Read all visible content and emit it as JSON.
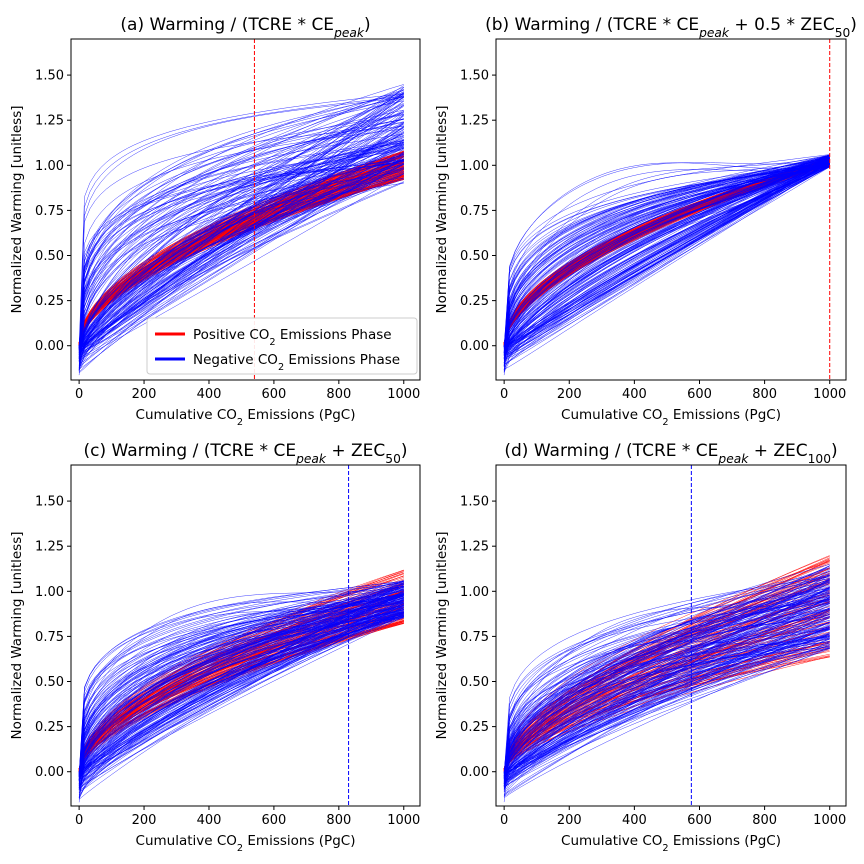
{
  "chart_data": [
    {
      "type": "line",
      "panel": "a",
      "title": "(a) Warming / (TCRE * CE",
      "title_sub": "peak",
      "title_end": ")",
      "xlabel_pre": "Cumulative CO",
      "xlabel_sub": "2",
      "xlabel_post": " Emissions (PgC)",
      "ylabel": "Normalized Warming [unitless]",
      "xlim": [
        -25,
        1050
      ],
      "ylim": [
        -0.19,
        1.7
      ],
      "xticks": [
        "0",
        "200",
        "400",
        "600",
        "800",
        "1000"
      ],
      "yticks": [
        "0.00",
        "0.25",
        "0.50",
        "0.75",
        "1.00",
        "1.25",
        "1.50"
      ],
      "vline": {
        "x": 540,
        "color": "#ff0000"
      },
      "series": [
        {
          "name_pre": "Positive CO",
          "name_sub": "2",
          "name_post": " Emissions Phase",
          "color": "#ff0000",
          "curve_count": 150,
          "final_range": [
            0.92,
            1.08
          ],
          "exponent_range": [
            0.52,
            0.6
          ]
        },
        {
          "name_pre": "Negative CO",
          "name_sub": "2",
          "name_post": " Emissions Phase",
          "color": "#0000ff",
          "curve_count": 180,
          "final_range": [
            0.9,
            1.45
          ],
          "exponent_range": [
            0.12,
            1.15
          ],
          "min_start": -0.18
        }
      ],
      "legend": "lower-right"
    },
    {
      "type": "line",
      "panel": "b",
      "title": "(b) Warming / (TCRE * CE",
      "title_sub": "peak",
      "title_mid": " + 0.5 * ZEC",
      "title_sub2": "50",
      "title_end": ")",
      "xlabel_pre": "Cumulative CO",
      "xlabel_sub": "2",
      "xlabel_post": " Emissions (PgC)",
      "ylabel": "Normalized Warming [unitless]",
      "xlim": [
        -25,
        1050
      ],
      "ylim": [
        -0.19,
        1.7
      ],
      "xticks": [
        "0",
        "200",
        "400",
        "600",
        "800",
        "1000"
      ],
      "yticks": [
        "0.00",
        "0.25",
        "0.50",
        "0.75",
        "1.00",
        "1.25",
        "1.50"
      ],
      "vline": {
        "x": 1000,
        "color": "#ff0000"
      },
      "series": [
        {
          "color": "#ff0000",
          "curve_count": 150,
          "final_range": [
            1.0,
            1.04
          ],
          "exponent_range": [
            0.5,
            0.6
          ]
        },
        {
          "color": "#0000ff",
          "curve_count": 180,
          "final_range": [
            0.99,
            1.06
          ],
          "exponent_range": [
            0.15,
            1.1
          ],
          "min_start": -0.18
        }
      ]
    },
    {
      "type": "line",
      "panel": "c",
      "title": "(c) Warming / (TCRE * CE",
      "title_sub": "peak",
      "title_mid": " + ZEC",
      "title_sub2": "50",
      "title_end": ")",
      "xlabel_pre": "Cumulative CO",
      "xlabel_sub": "2",
      "xlabel_post": " Emissions (PgC)",
      "ylabel": "Normalized Warming [unitless]",
      "xlim": [
        -25,
        1050
      ],
      "ylim": [
        -0.19,
        1.7
      ],
      "xticks": [
        "0",
        "200",
        "400",
        "600",
        "800",
        "1000"
      ],
      "yticks": [
        "0.00",
        "0.25",
        "0.50",
        "0.75",
        "1.00",
        "1.25",
        "1.50"
      ],
      "vline": {
        "x": 830,
        "color": "#0000ff"
      },
      "series": [
        {
          "color": "#ff0000",
          "curve_count": 110,
          "final_range": [
            0.82,
            1.12
          ],
          "exponent_range": [
            0.5,
            0.65
          ]
        },
        {
          "color": "#0000ff",
          "curve_count": 180,
          "final_range": [
            0.85,
            1.06
          ],
          "exponent_range": [
            0.18,
            1.0
          ],
          "min_start": -0.18
        }
      ]
    },
    {
      "type": "line",
      "panel": "d",
      "title": "(d) Warming / (TCRE * CE",
      "title_sub": "peak",
      "title_mid": " + ZEC",
      "title_sub2": "100",
      "title_end": ")",
      "xlabel_pre": "Cumulative CO",
      "xlabel_sub": "2",
      "xlabel_post": " Emissions (PgC)",
      "ylabel": "Normalized Warming [unitless]",
      "xlim": [
        -25,
        1050
      ],
      "ylim": [
        -0.19,
        1.7
      ],
      "xticks": [
        "0",
        "200",
        "400",
        "600",
        "800",
        "1000"
      ],
      "yticks": [
        "0.00",
        "0.25",
        "0.50",
        "0.75",
        "1.00",
        "1.25",
        "1.50"
      ],
      "vline": {
        "x": 575,
        "color": "#0000ff"
      },
      "series": [
        {
          "color": "#ff0000",
          "curve_count": 110,
          "final_range": [
            0.62,
            1.2
          ],
          "exponent_range": [
            0.5,
            0.72
          ]
        },
        {
          "color": "#0000ff",
          "curve_count": 180,
          "final_range": [
            0.68,
            1.15
          ],
          "exponent_range": [
            0.2,
            1.0
          ],
          "min_start": -0.18
        }
      ]
    }
  ]
}
